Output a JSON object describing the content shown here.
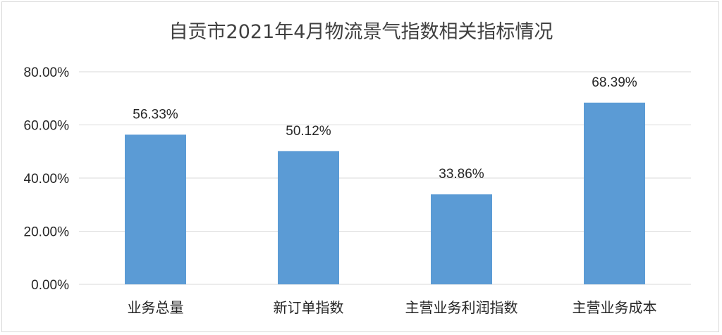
{
  "chart_data": {
    "type": "bar",
    "title": "自贡市2021年4月物流景气指数相关指标情况",
    "xlabel": "",
    "ylabel": "",
    "categories": [
      "业务总量",
      "新订单指数",
      "主营业务利润指数",
      "主营业务成本"
    ],
    "values": [
      56.33,
      50.12,
      33.86,
      68.39
    ],
    "data_labels": [
      "56.33%",
      "50.12%",
      "33.86%",
      "68.39%"
    ],
    "ylim": [
      0,
      80
    ],
    "yticks": [
      0,
      20,
      40,
      60,
      80
    ],
    "ytick_labels": [
      "0.00%",
      "20.00%",
      "40.00%",
      "60.00%",
      "80.00%"
    ],
    "grid": true,
    "legend": "none",
    "bar_color": "#5b9bd5",
    "grid_color": "#d9d9d9"
  }
}
